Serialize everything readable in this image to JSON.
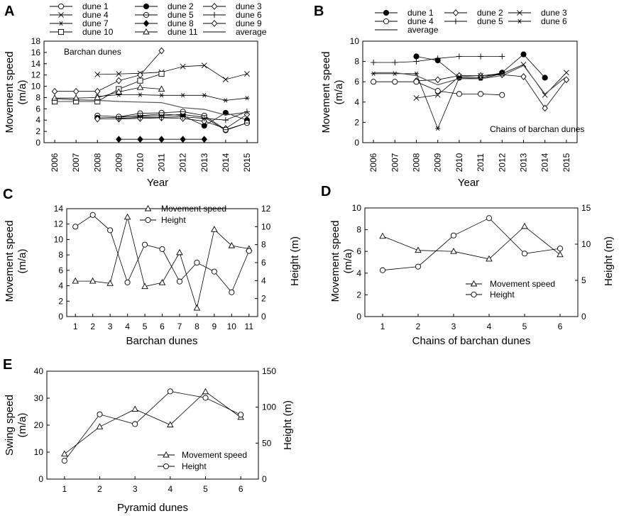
{
  "chart_data": [
    {
      "id": "A",
      "panel_label": "A",
      "type": "line",
      "xlabel": "Year",
      "ylabel": "Movement speed (m/a)",
      "ylabel_lines": [
        "Movement speed",
        "(m/a)"
      ],
      "annotation": "Barchan dunes",
      "categories": [
        "2006",
        "2007",
        "2008",
        "2009",
        "2010",
        "2011",
        "2012",
        "2013",
        "2014",
        "2015"
      ],
      "ylim": [
        0,
        18
      ],
      "yticks": [
        0,
        2,
        4,
        6,
        8,
        10,
        12,
        14,
        16,
        18
      ],
      "series": [
        {
          "name": "dune 1",
          "marker": "circle-open",
          "values": [
            null,
            null,
            4.8,
            4.6,
            4.7,
            4.8,
            5.0,
            4.5,
            2.2,
            3.5
          ]
        },
        {
          "name": "dune 2",
          "marker": "circle-filled",
          "values": [
            null,
            null,
            4.4,
            4.5,
            4.8,
            5.1,
            4.8,
            3.0,
            5.3,
            4.0
          ]
        },
        {
          "name": "dune 3",
          "marker": "diamond-open",
          "values": [
            null,
            null,
            4.2,
            4.2,
            4.3,
            4.4,
            4.3,
            3.8,
            2.5,
            5.0
          ]
        },
        {
          "name": "dune 4",
          "marker": "x",
          "values": [
            null,
            null,
            12.1,
            12.2,
            12.3,
            12.5,
            13.5,
            13.7,
            11.2,
            12.2
          ]
        },
        {
          "name": "dune 5",
          "marker": "circle-half",
          "values": [
            null,
            null,
            null,
            4.6,
            5.2,
            5.3,
            5.5,
            4.8,
            2.3,
            3.5
          ]
        },
        {
          "name": "dune 6",
          "marker": "plus",
          "values": [
            null,
            null,
            null,
            4.3,
            4.5,
            4.5,
            4.6,
            4.3,
            4.0,
            5.5
          ]
        },
        {
          "name": "dune 7",
          "marker": "asterisk",
          "values": [
            null,
            null,
            8.2,
            8.5,
            8.5,
            8.4,
            8.4,
            8.4,
            7.5,
            7.9
          ]
        },
        {
          "name": "dune 8",
          "marker": "diamond-filled",
          "values": [
            null,
            null,
            null,
            0.6,
            0.6,
            0.6,
            0.6,
            0.6,
            null,
            null
          ]
        },
        {
          "name": "dune 9",
          "marker": "diamond-open",
          "values": [
            9.1,
            9.1,
            9.1,
            11.0,
            12.0,
            16.3,
            null,
            null,
            null,
            null
          ]
        },
        {
          "name": "dune 10",
          "marker": "square-open",
          "values": [
            7.3,
            7.3,
            7.3,
            9.5,
            11.0,
            12.2,
            null,
            null,
            null,
            null
          ]
        },
        {
          "name": "dune 11",
          "marker": "triangle-open",
          "values": [
            7.9,
            7.9,
            8.0,
            9.0,
            9.8,
            9.5,
            null,
            null,
            null,
            null
          ]
        },
        {
          "name": "average",
          "marker": "none",
          "values": [
            7.8,
            7.6,
            7.5,
            7.3,
            7.2,
            7.1,
            6.2,
            5.9,
            4.9,
            5.4
          ]
        }
      ]
    },
    {
      "id": "B",
      "panel_label": "B",
      "type": "line",
      "xlabel": "Year",
      "ylabel": "Movement speed (m/a)",
      "ylabel_lines": [
        "Movement speed",
        "(m/a)"
      ],
      "annotation": "Chains of barchan dunes",
      "categories": [
        "2006",
        "2007",
        "2008",
        "2009",
        "2010",
        "2011",
        "2012",
        "2013",
        "2014",
        "2015"
      ],
      "ylim": [
        0,
        10
      ],
      "yticks": [
        0,
        2,
        4,
        6,
        8,
        10
      ],
      "series": [
        {
          "name": "dune 1",
          "marker": "circle-filled",
          "values": [
            null,
            null,
            8.5,
            8.1,
            6.4,
            6.4,
            6.9,
            8.7,
            6.4,
            null
          ]
        },
        {
          "name": "dune 2",
          "marker": "diamond-open",
          "values": [
            null,
            null,
            6.1,
            6.2,
            6.6,
            6.6,
            6.7,
            6.5,
            3.4,
            6.2
          ]
        },
        {
          "name": "dune 3",
          "marker": "x",
          "values": [
            null,
            null,
            4.4,
            4.7,
            6.5,
            6.6,
            6.8,
            7.7,
            4.7,
            6.9
          ]
        },
        {
          "name": "dune 4",
          "marker": "circle-open",
          "values": [
            6.0,
            6.0,
            6.0,
            5.1,
            4.8,
            4.8,
            4.7,
            null,
            null,
            null
          ]
        },
        {
          "name": "dune 5",
          "marker": "plus",
          "values": [
            7.9,
            7.9,
            8.0,
            8.3,
            8.5,
            8.5,
            8.5,
            null,
            null,
            null
          ]
        },
        {
          "name": "dune 6",
          "marker": "asterisk",
          "values": [
            6.8,
            6.8,
            6.8,
            1.4,
            6.4,
            6.3,
            6.8,
            null,
            null,
            null
          ]
        },
        {
          "name": "average",
          "marker": "none",
          "values": [
            6.9,
            6.9,
            6.6,
            5.7,
            6.3,
            6.3,
            6.6,
            7.6,
            4.8,
            6.5
          ]
        }
      ]
    },
    {
      "id": "C",
      "panel_label": "C",
      "type": "line",
      "xlabel": "Barchan dunes",
      "ylabel": "Movement speed (m/a)",
      "ylabel_lines": [
        "Movement speed",
        "(m/a)"
      ],
      "y2label": "Height (m)",
      "categories": [
        "1",
        "2",
        "3",
        "4",
        "5",
        "6",
        "7",
        "8",
        "9",
        "10",
        "11"
      ],
      "ylim": [
        0,
        14
      ],
      "yticks": [
        0,
        2,
        4,
        6,
        8,
        10,
        12,
        14
      ],
      "y2lim": [
        0,
        12
      ],
      "y2ticks": [
        0,
        2,
        4,
        6,
        8,
        10,
        12
      ],
      "series": [
        {
          "name": "Movement speed",
          "marker": "triangle-open",
          "axis": "left",
          "values": [
            4.6,
            4.6,
            4.3,
            12.9,
            3.9,
            4.4,
            8.3,
            1.1,
            11.3,
            9.2,
            8.8
          ]
        },
        {
          "name": "Height",
          "marker": "circle-open",
          "axis": "right",
          "values": [
            10.0,
            11.3,
            9.6,
            3.8,
            8.0,
            7.5,
            3.9,
            6.0,
            5.0,
            2.7,
            7.3
          ]
        }
      ]
    },
    {
      "id": "D",
      "panel_label": "D",
      "type": "line",
      "xlabel": "Chains of barchan dunes",
      "ylabel": "Movement speed (m/a)",
      "ylabel_lines": [
        "Movement speed",
        "(m/a)"
      ],
      "y2label": "Height (m)",
      "categories": [
        "1",
        "2",
        "3",
        "4",
        "5",
        "6"
      ],
      "ylim": [
        0,
        10
      ],
      "yticks": [
        0,
        2,
        4,
        6,
        8,
        10
      ],
      "y2lim": [
        0,
        15
      ],
      "y2ticks": [
        0,
        5,
        10,
        15
      ],
      "series": [
        {
          "name": "Movement speed",
          "marker": "triangle-open",
          "axis": "left",
          "values": [
            7.4,
            6.1,
            6.0,
            5.3,
            8.3,
            5.7
          ]
        },
        {
          "name": "Height",
          "marker": "circle-open",
          "axis": "right",
          "values": [
            6.4,
            6.9,
            11.2,
            13.6,
            8.7,
            9.4
          ]
        }
      ]
    },
    {
      "id": "E",
      "panel_label": "E",
      "type": "line",
      "xlabel": "Pyramid dunes",
      "ylabel": "Swing speed (m/a)",
      "ylabel_lines": [
        "Swing speed",
        "(m/a)"
      ],
      "y2label": "Height (m)",
      "categories": [
        "1",
        "2",
        "3",
        "4",
        "5",
        "6"
      ],
      "ylim": [
        0,
        40
      ],
      "yticks": [
        0,
        10,
        20,
        30,
        40
      ],
      "y2lim": [
        0,
        150
      ],
      "y2ticks": [
        0,
        50,
        100,
        150
      ],
      "series": [
        {
          "name": "Movement speed",
          "marker": "triangle-open",
          "axis": "left",
          "values": [
            9.3,
            19.4,
            25.9,
            20.1,
            32.4,
            22.9
          ]
        },
        {
          "name": "Height",
          "marker": "circle-open",
          "axis": "right",
          "values": [
            25.5,
            90.0,
            76.5,
            122.0,
            113.0,
            89.5
          ]
        }
      ]
    }
  ]
}
